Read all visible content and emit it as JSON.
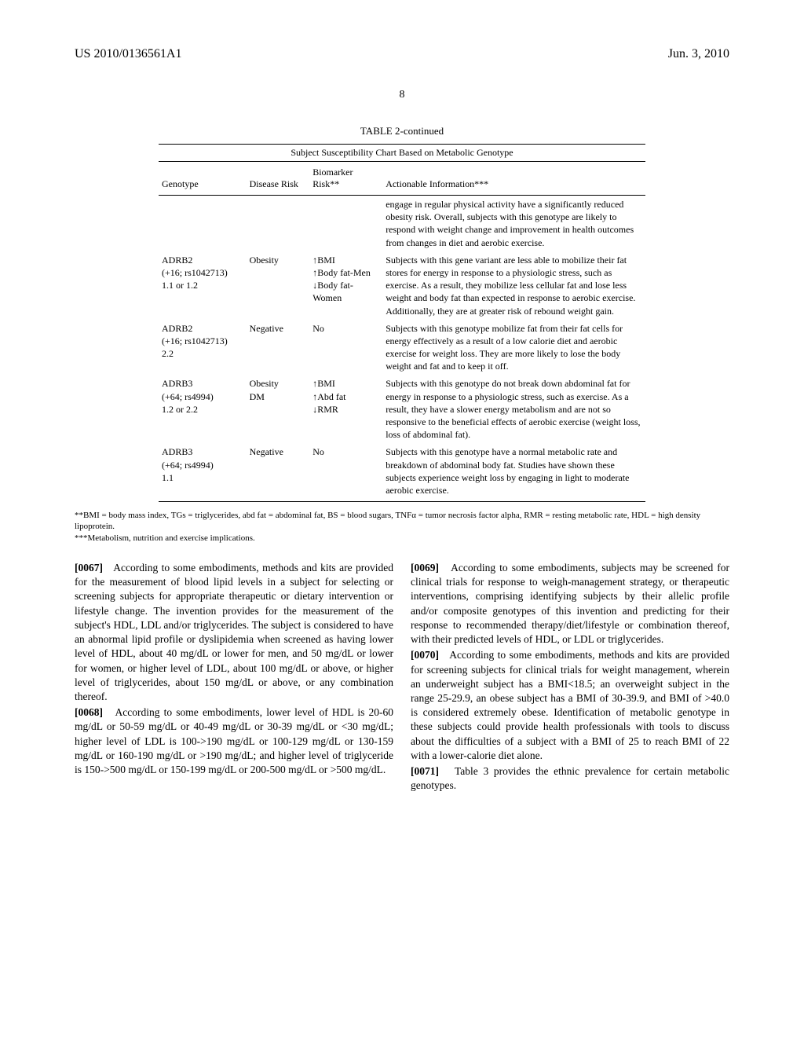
{
  "header": {
    "left": "US 2010/0136561A1",
    "right": "Jun. 3, 2010"
  },
  "page_number": "8",
  "table": {
    "title": "TABLE 2-continued",
    "subtitle": "Subject Susceptibility Chart Based on Metabolic Genotype",
    "columns": [
      "Genotype",
      "Disease Risk",
      "Biomarker Risk**",
      "Actionable Information***"
    ],
    "rows": [
      {
        "genotype": "",
        "disease": "",
        "biomarker": "",
        "action": "engage in regular physical activity have a significantly reduced obesity risk. Overall, subjects with this genotype are likely to respond with weight change and improvement in health outcomes from changes in diet and aerobic exercise."
      },
      {
        "genotype": "ADRB2\n(+16; rs1042713)\n1.1 or 1.2",
        "disease": "Obesity",
        "biomarker": "↑BMI\n↑Body fat-Men\n↓Body fat-Women",
        "action": "Subjects with this gene variant are less able to mobilize their fat stores for energy in response to a physiologic stress, such as exercise. As a result, they mobilize less cellular fat and lose less weight and body fat than expected in response to aerobic exercise. Additionally, they are at greater risk of rebound weight gain."
      },
      {
        "genotype": "ADRB2\n(+16; rs1042713)\n2.2",
        "disease": "Negative",
        "biomarker": "No",
        "action": "Subjects with this genotype mobilize fat from their fat cells for energy effectively as a result of a low calorie diet and aerobic exercise for weight loss. They are more likely to lose the body weight and fat and to keep it off."
      },
      {
        "genotype": "ADRB3\n(+64; rs4994)\n1.2 or 2.2",
        "disease": "Obesity\nDM",
        "biomarker": "↑BMI\n↑Abd fat\n↓RMR",
        "action": "Subjects with this genotype do not break down abdominal fat for energy in response to a physiologic stress, such as exercise. As a result, they have a slower energy metabolism and are not so responsive to the beneficial effects of aerobic exercise (weight loss, loss of abdominal fat)."
      },
      {
        "genotype": "ADRB3\n(+64; rs4994)\n1.1",
        "disease": "Negative",
        "biomarker": "No",
        "action": "Subjects with this genotype have a normal metabolic rate and breakdown of abdominal body fat. Studies have shown these subjects experience weight loss by engaging in light to moderate aerobic exercise."
      }
    ],
    "footnote1": "**BMI = body mass index, TGs = triglycerides, abd fat = abdominal fat, BS = blood sugars, TNFα = tumor necrosis factor alpha, RMR = resting metabolic rate, HDL = high density lipoprotein.",
    "footnote2": "***Metabolism, nutrition and exercise implications."
  },
  "paragraphs": {
    "left": [
      {
        "num": "[0067]",
        "text": "According to some embodiments, methods and kits are provided for the measurement of blood lipid levels in a subject for selecting or screening subjects for appropriate therapeutic or dietary intervention or lifestyle change. The invention provides for the measurement of the subject's HDL, LDL and/or triglycerides. The subject is considered to have an abnormal lipid profile or dyslipidemia when screened as having lower level of HDL, about 40 mg/dL or lower for men, and 50 mg/dL or lower for women, or higher level of LDL, about 100 mg/dL or above, or higher level of triglycerides, about 150 mg/dL or above, or any combination thereof."
      },
      {
        "num": "[0068]",
        "text": "According to some embodiments, lower level of HDL is 20-60 mg/dL or 50-59 mg/dL or 40-49 mg/dL or 30-39 mg/dL or <30 mg/dL; higher level of LDL is 100->190 mg/dL or 100-129 mg/dL or 130-159 mg/dL or 160-190 mg/dL or >190 mg/dL; and higher level of triglyceride is 150->500 mg/dL or 150-199 mg/dL or 200-500 mg/dL or >500 mg/dL."
      }
    ],
    "right": [
      {
        "num": "[0069]",
        "text": "According to some embodiments, subjects may be screened for clinical trials for response to weigh-management strategy, or therapeutic interventions, comprising identifying subjects by their allelic profile and/or composite genotypes of this invention and predicting for their response to recommended therapy/diet/lifestyle or combination thereof, with their predicted levels of HDL, or LDL or triglycerides."
      },
      {
        "num": "[0070]",
        "text": "According to some embodiments, methods and kits are provided for screening subjects for clinical trials for weight management, wherein an underweight subject has a BMI<18.5; an overweight subject in the range 25-29.9, an obese subject has a BMI of 30-39.9, and BMI of >40.0 is considered extremely obese. Identification of metabolic genotype in these subjects could provide health professionals with tools to discuss about the difficulties of a subject with a BMI of 25 to reach BMI of 22 with a lower-calorie diet alone."
      },
      {
        "num": "[0071]",
        "text": "Table 3 provides the ethnic prevalence for certain metabolic genotypes."
      }
    ]
  }
}
